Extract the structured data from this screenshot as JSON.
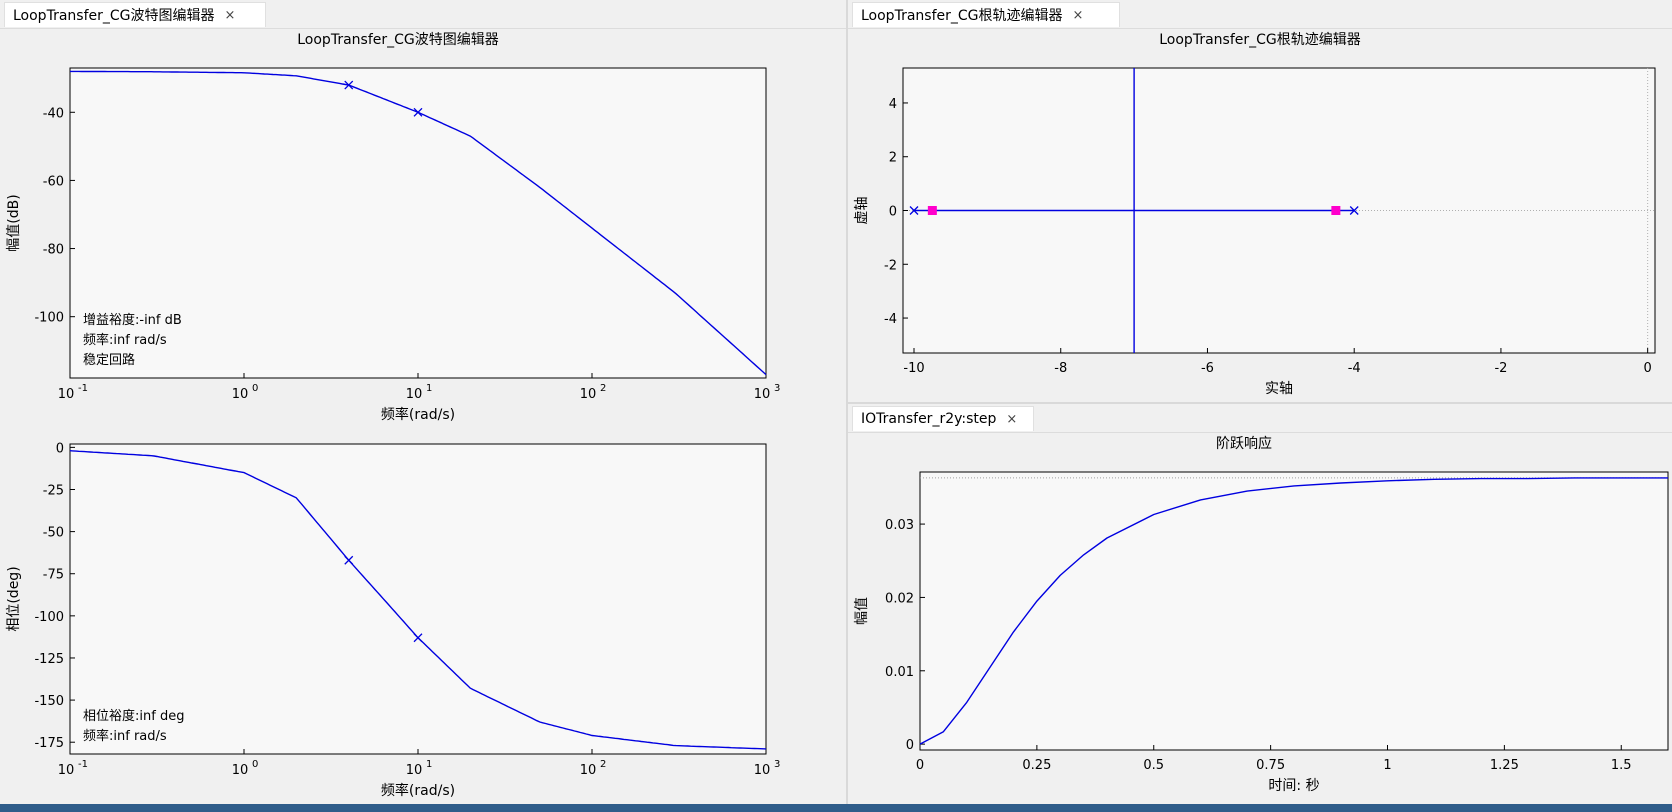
{
  "bode": {
    "tab_label": "LoopTransfer_CG波特图编辑器",
    "title": "LoopTransfer_CG波特图编辑器",
    "xticks": [
      "10",
      "10",
      "10",
      "10",
      "10"
    ],
    "xexps": [
      "-1",
      "0",
      "1",
      "2",
      "3"
    ],
    "xlabel": "频率(rad/s)",
    "mag_ylabel": "幅值(dB)",
    "mag_yticks": [
      "-40",
      "-60",
      "-80",
      "-100"
    ],
    "phase_ylabel": "相位(deg)",
    "phase_yticks": [
      "0",
      "-25",
      "-50",
      "-75",
      "-100",
      "-125",
      "-150",
      "-175"
    ],
    "mag_notes": [
      "增益裕度:-inf dB",
      "频率:inf rad/s",
      "稳定回路"
    ],
    "phase_notes": [
      "相位裕度:inf deg",
      "频率:inf rad/s"
    ]
  },
  "rlocus": {
    "tab_label": "LoopTransfer_CG根轨迹编辑器",
    "title": "LoopTransfer_CG根轨迹编辑器",
    "xlabel": "实轴",
    "ylabel": "虚轴",
    "xticks": [
      "-10",
      "-8",
      "-6",
      "-4",
      "-2",
      "0"
    ],
    "yticks": [
      "4",
      "2",
      "0",
      "-2",
      "-4"
    ]
  },
  "step": {
    "tab_label": "IOTransfer_r2y:step",
    "title": "阶跃响应",
    "xlabel": "时间: 秒",
    "ylabel": "幅值",
    "xticks": [
      "0",
      "0.25",
      "0.5",
      "0.75",
      "1",
      "1.25",
      "1.5"
    ],
    "yticks": [
      "0.03",
      "0.02",
      "0.01",
      "0"
    ]
  },
  "close_glyph": "×",
  "colors": {
    "curve": "#0000e0",
    "marker_square": "#ff00cc",
    "plot_bg": "#f8f8f8",
    "statusbar": "#2f5d8a"
  },
  "chart_data": [
    {
      "type": "line",
      "title": "LoopTransfer_CG波特图编辑器",
      "xlabel": "频率(rad/s)",
      "ylabel": "幅值(dB)",
      "xscale": "log",
      "xlim": [
        0.1,
        1000
      ],
      "ylim": [
        -118,
        -27
      ],
      "x": [
        0.1,
        0.3,
        1,
        2,
        4,
        10,
        20,
        50,
        100,
        300,
        1000
      ],
      "series": [
        {
          "values": [
            -28,
            -28.1,
            -28.4,
            -29.3,
            -32,
            -40,
            -47,
            -62,
            -74,
            -93,
            -117
          ]
        }
      ],
      "markers": [
        {
          "x": 4,
          "y": -32
        },
        {
          "x": 10,
          "y": -40
        }
      ],
      "notes": [
        "增益裕度:-inf dB",
        "频率:inf rad/s",
        "稳定回路"
      ],
      "grid": false
    },
    {
      "type": "line",
      "xlabel": "频率(rad/s)",
      "ylabel": "相位(deg)",
      "xscale": "log",
      "xlim": [
        0.1,
        1000
      ],
      "ylim": [
        -182,
        2
      ],
      "x": [
        0.1,
        0.3,
        1,
        2,
        4,
        7,
        10,
        20,
        50,
        100,
        300,
        1000
      ],
      "series": [
        {
          "values": [
            -2,
            -5,
            -15,
            -30,
            -67,
            -95,
            -113,
            -143,
            -163,
            -171,
            -177,
            -179
          ]
        }
      ],
      "markers": [
        {
          "x": 4,
          "y": -67
        },
        {
          "x": 10,
          "y": -113
        }
      ],
      "notes": [
        "相位裕度:inf deg",
        "频率:inf rad/s"
      ],
      "grid": false
    },
    {
      "type": "scatter",
      "title": "LoopTransfer_CG根轨迹编辑器",
      "xlabel": "实轴",
      "ylabel": "虚轴",
      "xlim": [
        -10.15,
        0.1
      ],
      "ylim": [
        -5.3,
        5.3
      ],
      "poles": [
        {
          "x": -10,
          "y": 0
        },
        {
          "x": -4,
          "y": 0
        }
      ],
      "closed_loop_poles": [
        {
          "x": -9.75,
          "y": 0
        },
        {
          "x": -4.25,
          "y": 0
        }
      ],
      "locus_real_segment": [
        -10,
        -4
      ],
      "breakaway_vertical_x": -7,
      "grid": false
    },
    {
      "type": "line",
      "title": "阶跃响应",
      "xlabel": "时间: 秒",
      "ylabel": "幅值",
      "xlim": [
        0,
        1.6
      ],
      "ylim": [
        -0.0008,
        0.0371
      ],
      "x": [
        0,
        0.05,
        0.1,
        0.15,
        0.2,
        0.25,
        0.3,
        0.35,
        0.4,
        0.5,
        0.6,
        0.7,
        0.8,
        0.9,
        1.0,
        1.1,
        1.2,
        1.3,
        1.4,
        1.5,
        1.6
      ],
      "series": [
        {
          "values": [
            0,
            0.0017,
            0.0057,
            0.0105,
            0.0153,
            0.0195,
            0.023,
            0.0258,
            0.0281,
            0.0313,
            0.0333,
            0.0345,
            0.0352,
            0.0356,
            0.0359,
            0.0361,
            0.0362,
            0.0362,
            0.0363,
            0.0363,
            0.0363
          ]
        }
      ],
      "steady_state": 0.0363,
      "grid": false
    }
  ]
}
